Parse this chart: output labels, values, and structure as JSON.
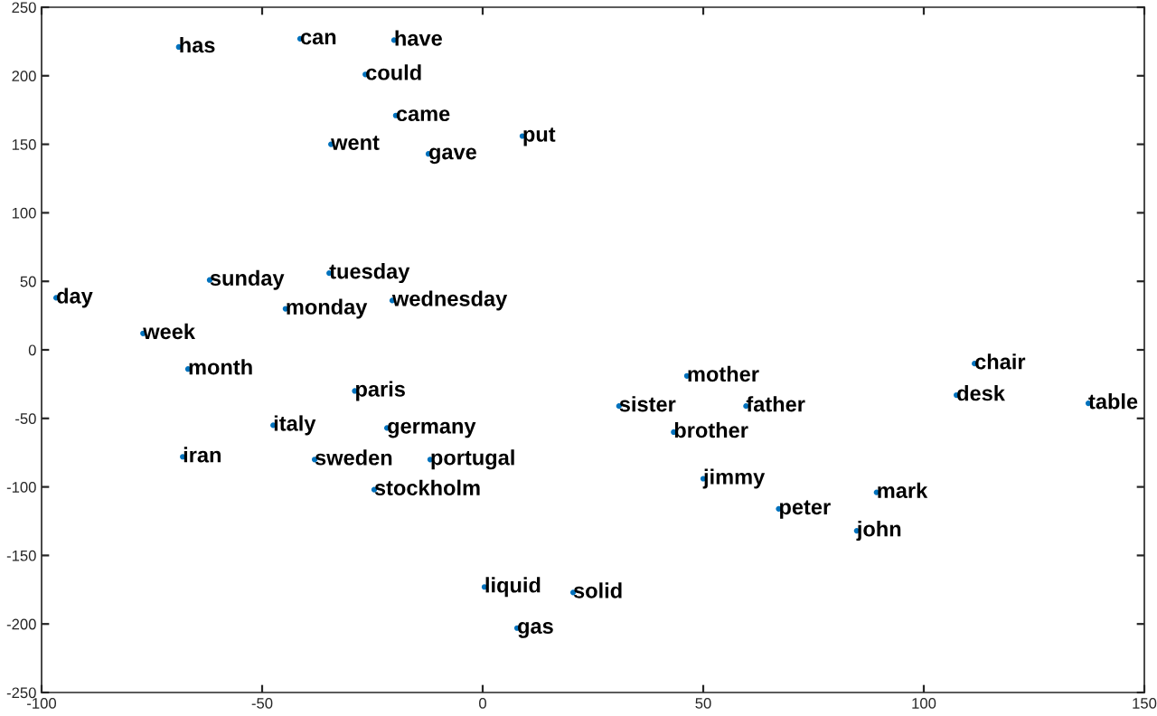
{
  "chart_data": {
    "type": "scatter",
    "marker": "circle",
    "grid": false,
    "legend": false,
    "xlim": [
      -100,
      150
    ],
    "xticks": [
      -100,
      -50,
      0,
      50,
      100,
      150
    ],
    "ylim": [
      -250,
      250
    ],
    "yticks": [
      -250,
      -200,
      -150,
      -100,
      -50,
      0,
      50,
      100,
      150,
      200,
      250
    ],
    "series": [
      {
        "color": "#0072bd",
        "x": [
          -68.9,
          -41.4,
          -20.1,
          -26.6,
          -19.7,
          -34.4,
          -12.3,
          9.0,
          -61.9,
          -34.8,
          -44.7,
          -20.5,
          -96.7,
          -77,
          -66.8,
          -29,
          -47.5,
          -21.7,
          -68,
          -38.1,
          -11.9,
          -24.6,
          0.4,
          7.8,
          20.5,
          46.3,
          30.9,
          59.7,
          43.3,
          50,
          67.1,
          89.3,
          84.8,
          111.5,
          107.4,
          137.3
        ],
        "values": [
          221,
          227,
          226,
          201,
          171,
          150,
          143,
          156,
          51,
          56,
          30,
          36,
          38,
          12,
          -14,
          -30,
          -55,
          -57,
          -78,
          -80,
          -80,
          -102,
          -173,
          -203,
          -177,
          -19,
          -41,
          -41,
          -60,
          -94,
          -116,
          -104,
          -132,
          -10,
          -33,
          -39
        ]
      }
    ],
    "annotations": [
      {
        "text": "has",
        "x": -68.9,
        "y": 221
      },
      {
        "text": "can",
        "x": -41.4,
        "y": 227
      },
      {
        "text": "have",
        "x": -20.1,
        "y": 226
      },
      {
        "text": "could",
        "x": -26.6,
        "y": 201
      },
      {
        "text": "came",
        "x": -19.7,
        "y": 171
      },
      {
        "text": "went",
        "x": -34.4,
        "y": 150
      },
      {
        "text": "gave",
        "x": -12.3,
        "y": 143
      },
      {
        "text": "put",
        "x": 9.0,
        "y": 156
      },
      {
        "text": "sunday",
        "x": -61.9,
        "y": 51
      },
      {
        "text": "tuesday",
        "x": -34.8,
        "y": 56
      },
      {
        "text": "monday",
        "x": -44.7,
        "y": 30
      },
      {
        "text": "wednesday",
        "x": -20.5,
        "y": 36
      },
      {
        "text": "day",
        "x": -96.7,
        "y": 38
      },
      {
        "text": "week",
        "x": -77,
        "y": 12
      },
      {
        "text": "month",
        "x": -66.8,
        "y": -14
      },
      {
        "text": "paris",
        "x": -29,
        "y": -30
      },
      {
        "text": "italy",
        "x": -47.5,
        "y": -55
      },
      {
        "text": "germany",
        "x": -21.7,
        "y": -57
      },
      {
        "text": "iran",
        "x": -68,
        "y": -78
      },
      {
        "text": "sweden",
        "x": -38.1,
        "y": -80
      },
      {
        "text": "portugal",
        "x": -11.9,
        "y": -80
      },
      {
        "text": "stockholm",
        "x": -24.6,
        "y": -102
      },
      {
        "text": "liquid",
        "x": 0.4,
        "y": -173
      },
      {
        "text": "gas",
        "x": 7.8,
        "y": -203
      },
      {
        "text": "solid",
        "x": 20.5,
        "y": -177
      },
      {
        "text": "mother",
        "x": 46.3,
        "y": -19
      },
      {
        "text": "sister",
        "x": 30.9,
        "y": -41
      },
      {
        "text": "father",
        "x": 59.7,
        "y": -41
      },
      {
        "text": "brother",
        "x": 43.3,
        "y": -60
      },
      {
        "text": "jimmy",
        "x": 50,
        "y": -94
      },
      {
        "text": "peter",
        "x": 67.1,
        "y": -116
      },
      {
        "text": "mark",
        "x": 89.3,
        "y": -104
      },
      {
        "text": "john",
        "x": 84.8,
        "y": -132
      },
      {
        "text": "chair",
        "x": 111.5,
        "y": -10
      },
      {
        "text": "desk",
        "x": 107.4,
        "y": -33
      },
      {
        "text": "table",
        "x": 137.3,
        "y": -39
      }
    ]
  }
}
